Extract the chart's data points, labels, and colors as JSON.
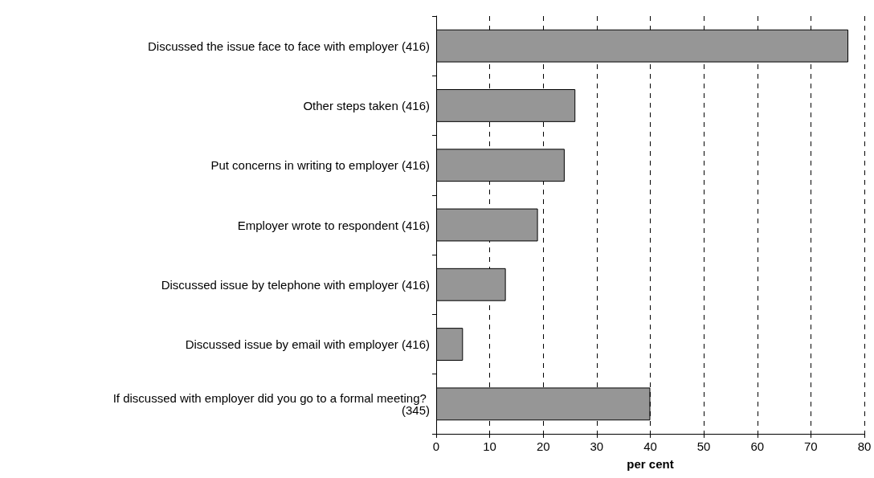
{
  "chart_data": {
    "type": "bar",
    "orientation": "horizontal",
    "xlabel": "per cent",
    "categories": [
      "Discussed the issue face to face with employer (416)",
      "Other steps taken (416)",
      "Put concerns in writing to employer (416)",
      "Employer wrote to respondent (416)",
      "Discussed issue by telephone with employer (416)",
      "Discussed issue by email with employer (416)",
      "If discussed with employer did you go to a formal meeting? (345)"
    ],
    "values": [
      77,
      26,
      24,
      19,
      13,
      5,
      40
    ],
    "color": "#969696",
    "xlim": [
      0,
      80
    ],
    "xticks": [
      0,
      10,
      20,
      30,
      40,
      50,
      60,
      70,
      80
    ],
    "grid": "x"
  }
}
